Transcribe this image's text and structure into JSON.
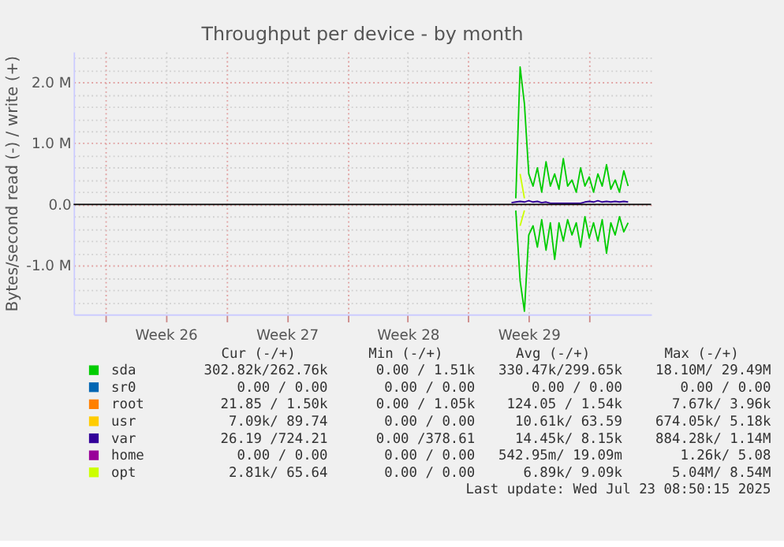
{
  "chart_data": {
    "type": "line",
    "title": "Throughput per device - by month",
    "ylabel": "Bytes/second read (-) / write (+)",
    "x": [
      "2025-07-16T12:00",
      "2025-07-16T18:00",
      "2025-07-17T00:00",
      "2025-07-17T06:00",
      "2025-07-17T12:00",
      "2025-07-17T18:00",
      "2025-07-18T00:00",
      "2025-07-18T06:00",
      "2025-07-18T12:00",
      "2025-07-18T18:00",
      "2025-07-19T00:00",
      "2025-07-19T06:00",
      "2025-07-19T12:00",
      "2025-07-19T18:00",
      "2025-07-20T00:00",
      "2025-07-20T06:00",
      "2025-07-20T12:00",
      "2025-07-20T18:00",
      "2025-07-21T00:00",
      "2025-07-21T06:00",
      "2025-07-21T12:00",
      "2025-07-21T18:00",
      "2025-07-22T00:00",
      "2025-07-22T06:00",
      "2025-07-22T12:00",
      "2025-07-22T18:00",
      "2025-07-23T00:00",
      "2025-07-23T06:00"
    ],
    "series": [
      {
        "name": "sda",
        "color": "#00cc00",
        "values": [
          null,
          100000,
          2250000,
          1650000,
          500000,
          300000,
          600000,
          200000,
          700000,
          300000,
          500000,
          250000,
          750000,
          300000,
          400000,
          200000,
          600000,
          300000,
          450000,
          200000,
          500000,
          300000,
          650000,
          250000,
          400000,
          200000,
          550000,
          300000
        ]
      },
      {
        "color": "#00cc00",
        "values": [
          null,
          -100000,
          -1250000,
          -1750000,
          -500000,
          -350000,
          -700000,
          -250000,
          -750000,
          -300000,
          -900000,
          -300000,
          -600000,
          -250000,
          -500000,
          -300000,
          -700000,
          -200000,
          -550000,
          -300000,
          -600000,
          -250000,
          -800000,
          -300000,
          -500000,
          -200000,
          -450000,
          -300000
        ]
      },
      {
        "name": "sr0",
        "color": "#0066b3",
        "values": [
          null,
          null,
          null,
          null,
          null,
          null,
          null,
          null,
          null,
          null,
          null,
          null,
          null,
          null,
          null,
          null,
          null,
          null,
          null,
          null,
          null,
          null,
          null,
          null,
          null,
          null,
          null,
          null
        ]
      },
      {
        "name": "root",
        "color": "#ff8000",
        "values": [
          null,
          null,
          null,
          null,
          null,
          null,
          null,
          null,
          null,
          null,
          null,
          null,
          null,
          null,
          null,
          null,
          null,
          null,
          null,
          null,
          null,
          null,
          null,
          null,
          null,
          null,
          null,
          null
        ]
      },
      {
        "name": "usr",
        "color": "#ffcc00",
        "values": [
          null,
          null,
          null,
          null,
          null,
          null,
          null,
          null,
          null,
          null,
          null,
          null,
          null,
          null,
          null,
          null,
          null,
          null,
          null,
          null,
          null,
          null,
          null,
          null,
          null,
          null,
          null,
          null
        ]
      },
      {
        "name": "var",
        "color": "#330099",
        "values": [
          30000,
          40000,
          50000,
          40000,
          60000,
          40000,
          50000,
          30000,
          40000,
          20000,
          20000,
          20000,
          20000,
          20000,
          20000,
          20000,
          20000,
          40000,
          50000,
          40000,
          60000,
          40000,
          50000,
          40000,
          50000,
          40000,
          50000,
          40000
        ]
      },
      {
        "name": "home",
        "color": "#990099",
        "values": [
          null,
          null,
          null,
          null,
          null,
          null,
          null,
          null,
          null,
          null,
          null,
          null,
          null,
          null,
          null,
          null,
          null,
          null,
          null,
          null,
          null,
          null,
          null,
          null,
          null,
          null,
          null,
          null
        ]
      },
      {
        "name": "opt",
        "color": "#ccff00",
        "values": [
          null,
          null,
          500000,
          100000,
          null,
          null,
          null,
          null,
          null,
          null,
          null,
          null,
          null,
          null,
          null,
          null,
          null,
          null,
          null,
          null,
          null,
          null,
          null,
          null,
          null,
          null,
          null,
          null
        ]
      },
      {
        "color": "#ccff00",
        "values": [
          null,
          null,
          -350000,
          -100000,
          null,
          null,
          null,
          null,
          null,
          null,
          null,
          null,
          null,
          null,
          null,
          null,
          null,
          null,
          null,
          null,
          null,
          null,
          null,
          null,
          null,
          null,
          null,
          null
        ]
      }
    ],
    "xlim": [
      "2025-06-21T04:00",
      "2025-07-24T14:00"
    ],
    "xticks": [
      {
        "value": "2025-06-23",
        "label": null
      },
      {
        "value": "2025-06-26T12:00",
        "label": "Week 26"
      },
      {
        "value": "2025-06-30",
        "label": null
      },
      {
        "value": "2025-07-03T12:00",
        "label": "Week 27"
      },
      {
        "value": "2025-07-07",
        "label": null
      },
      {
        "value": "2025-07-10T12:00",
        "label": "Week 28"
      },
      {
        "value": "2025-07-14",
        "label": null
      },
      {
        "value": "2025-07-17T12:00",
        "label": "Week 29"
      },
      {
        "value": "2025-07-21",
        "label": null
      }
    ],
    "ylim": [
      -1800000,
      2500000
    ],
    "yticks": [
      {
        "value": -1600000,
        "label": null
      },
      {
        "value": -1400000,
        "label": null
      },
      {
        "value": -1200000,
        "label": null
      },
      {
        "value": -1000000,
        "label": "-1.0 M"
      },
      {
        "value": -800000,
        "label": null
      },
      {
        "value": -600000,
        "label": null
      },
      {
        "value": -400000,
        "label": null
      },
      {
        "value": -200000,
        "label": null
      },
      {
        "value": 0,
        "label": "0.0"
      },
      {
        "value": 200000,
        "label": null
      },
      {
        "value": 400000,
        "label": null
      },
      {
        "value": 600000,
        "label": null
      },
      {
        "value": 800000,
        "label": null
      },
      {
        "value": 1000000,
        "label": "1.0 M"
      },
      {
        "value": 1200000,
        "label": null
      },
      {
        "value": 1400000,
        "label": null
      },
      {
        "value": 1600000,
        "label": null
      },
      {
        "value": 1800000,
        "label": null
      },
      {
        "value": 2000000,
        "label": "2.0 M"
      },
      {
        "value": 2200000,
        "label": null
      },
      {
        "value": 2400000,
        "label": null
      }
    ],
    "ref_lines": [
      {
        "axis": "y",
        "value": 0,
        "color": "#000000"
      }
    ],
    "grid": true,
    "legend": "bottom",
    "line_style": "solid",
    "annotations": [
      "Cur (-/+)",
      "Min (-/+)",
      "Avg (-/+)",
      "Max (-/+)",
      "302.82k/262.76k",
      "0.00 /  1.51k",
      "330.47k/299.65k",
      "18.10M/ 29.49M",
      "0.00 /  0.00",
      "0.00 /  0.00",
      "0.00 /  0.00",
      "0.00 /  0.00",
      "21.85 /  1.50k",
      "0.00 /  1.05k",
      "124.05 /  1.54k",
      "7.67k/  3.96k",
      "7.09k/ 89.74",
      "0.00 /  0.00",
      "10.61k/ 63.59",
      "674.05k/  5.18k",
      "26.19 /724.21",
      "0.00 /378.61",
      "14.45k/  8.15k",
      "884.28k/  1.14M",
      "0.00 /  0.00",
      "0.00 /  0.00",
      "542.95m/ 19.09m",
      "1.26k/  5.08",
      "2.81k/ 65.64",
      "0.00 /  0.00",
      "6.89k/  9.09k",
      "5.04M/  8.54M",
      "Last update: Wed Jul 23 08:50:15 2025"
    ]
  }
}
